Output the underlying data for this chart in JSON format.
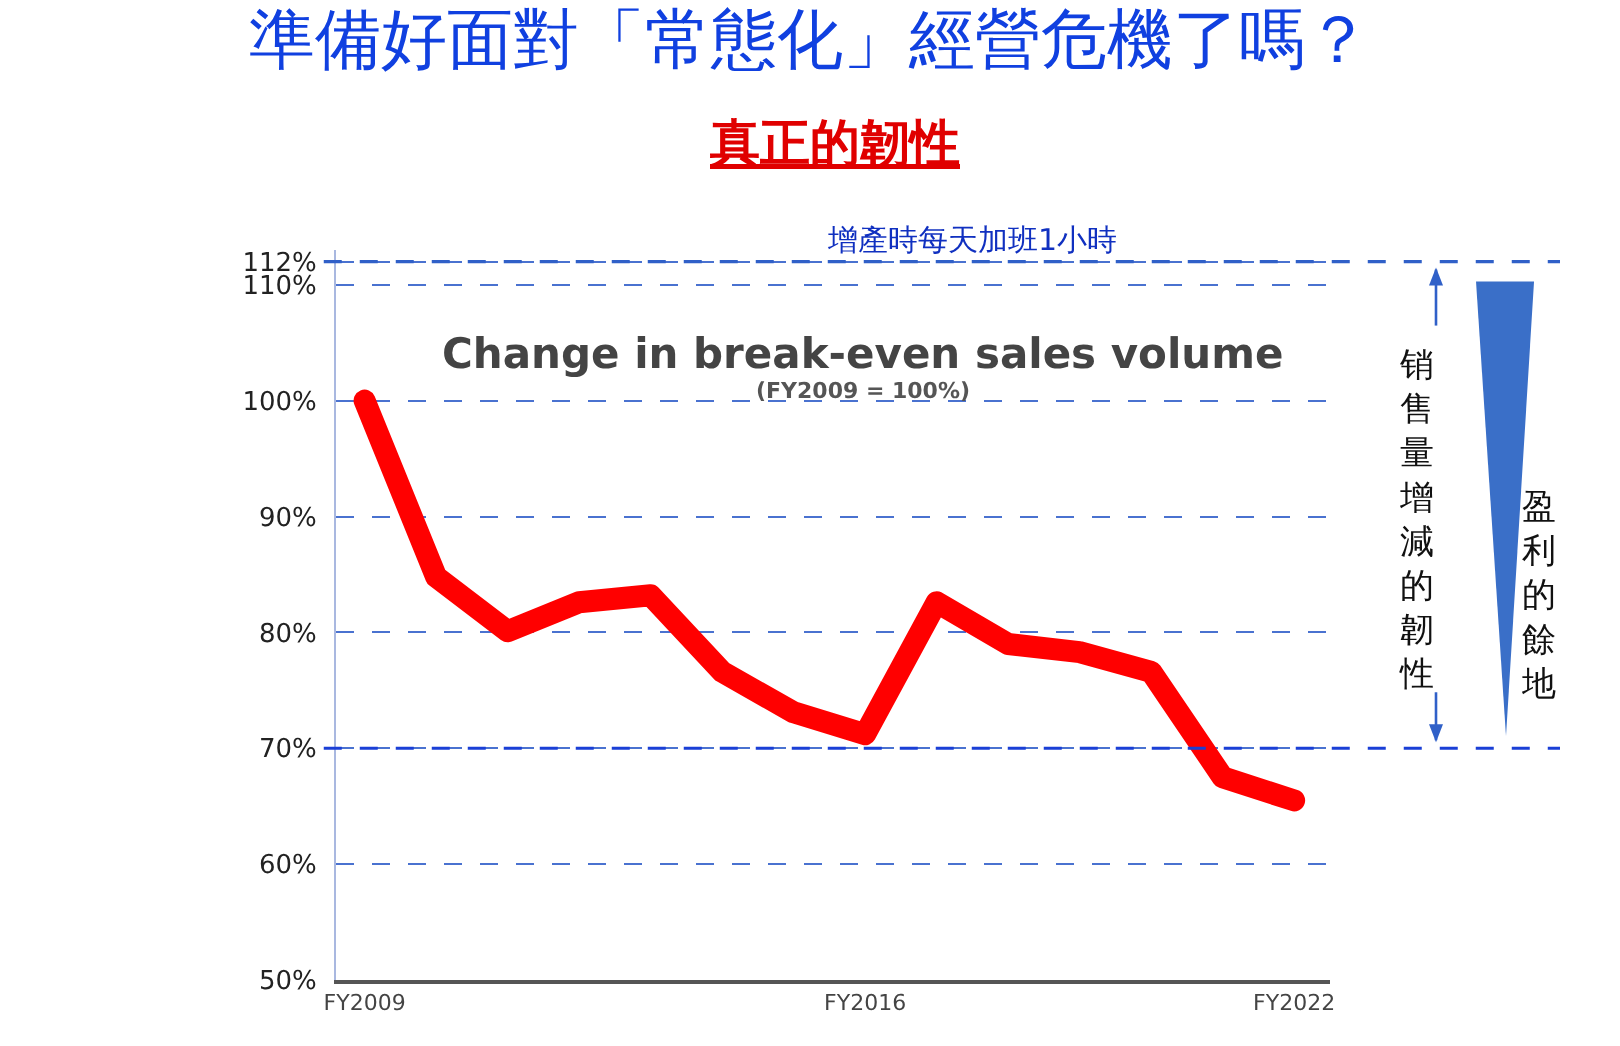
{
  "chart_data": {
    "type": "line",
    "title": "準備好面對「常態化」經營危機了嗎？",
    "subtitle": "真正的韌性",
    "annotations": [
      "Change in break-even sales volume",
      "(FY2009 = 100%)",
      "销售量增減的韌性",
      "盈利的餘地"
    ],
    "categories": [
      "FY2009",
      null,
      null,
      null,
      null,
      null,
      null,
      "FY2016",
      null,
      null,
      null,
      null,
      null,
      "FY2022"
    ],
    "series": [
      {
        "color": "#ff0000",
        "values": [
          100,
          84.8,
          80.1,
          82.6,
          83.2,
          76.6,
          73.1,
          71.2,
          82.6,
          79.0,
          78.3,
          76.6,
          67.5,
          65.5
        ]
      }
    ],
    "ylim": [
      50,
      113
    ],
    "yticks": [
      {
        "value": 50,
        "label": "50%"
      },
      {
        "value": 60,
        "label": "60%"
      },
      {
        "value": 70,
        "label": "70%"
      },
      {
        "value": 80,
        "label": "80%"
      },
      {
        "value": 90,
        "label": "90%"
      },
      {
        "value": 100,
        "label": "100%"
      },
      {
        "value": 110,
        "label": "110%"
      },
      {
        "value": 112,
        "label": "112%"
      }
    ],
    "ref_lines": [
      {
        "axis": "y",
        "value": 70,
        "label": null,
        "color": "#1a3fd6",
        "line_style": "dashed"
      },
      {
        "axis": "y",
        "value": 112,
        "label": "增產時每天加班1小時",
        "color": "#3060c8",
        "line_style": "dashed"
      }
    ],
    "grid": "y",
    "line_style": "solid"
  }
}
